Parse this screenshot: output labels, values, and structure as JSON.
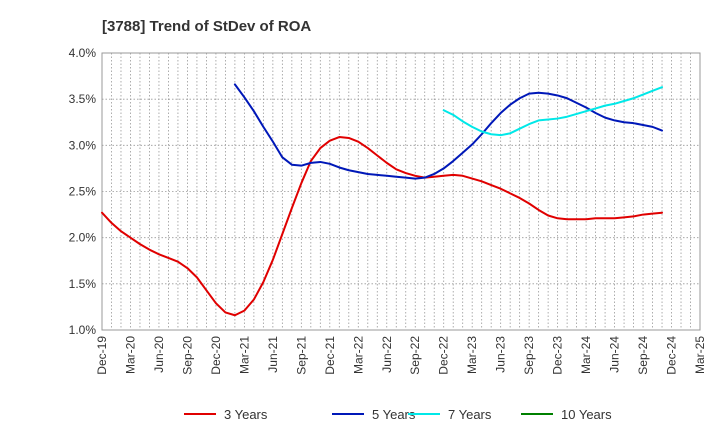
{
  "chart_data": {
    "type": "line",
    "title": "[3788]  Trend of StDev of ROA",
    "xlabel": "",
    "ylabel": "",
    "x_tick_labels": [
      "Dec-19",
      "Mar-20",
      "Jun-20",
      "Sep-20",
      "Dec-20",
      "Mar-21",
      "Jun-21",
      "Sep-21",
      "Dec-21",
      "Mar-22",
      "Jun-22",
      "Sep-22",
      "Dec-22",
      "Mar-23",
      "Jun-23",
      "Sep-23",
      "Dec-23",
      "Mar-24",
      "Jun-24",
      "Sep-24",
      "Dec-24",
      "Mar-25"
    ],
    "y_tick_labels": [
      "1.0%",
      "1.5%",
      "2.0%",
      "2.5%",
      "3.0%",
      "3.5%",
      "4.0%"
    ],
    "ylim": [
      1.0,
      4.0
    ],
    "grid": true,
    "legend_position": "bottom",
    "series": [
      {
        "name": "3 Years",
        "color": "#e00000",
        "points": [
          [
            "Dec-19",
            2.27
          ],
          [
            "Jan-20",
            2.16
          ],
          [
            "Feb-20",
            2.07
          ],
          [
            "Mar-20",
            2.0
          ],
          [
            "Apr-20",
            1.93
          ],
          [
            "May-20",
            1.87
          ],
          [
            "Jun-20",
            1.82
          ],
          [
            "Jul-20",
            1.78
          ],
          [
            "Aug-20",
            1.74
          ],
          [
            "Sep-20",
            1.67
          ],
          [
            "Oct-20",
            1.57
          ],
          [
            "Nov-20",
            1.43
          ],
          [
            "Dec-20",
            1.29
          ],
          [
            "Jan-21",
            1.19
          ],
          [
            "Feb-21",
            1.16
          ],
          [
            "Mar-21",
            1.21
          ],
          [
            "Apr-21",
            1.33
          ],
          [
            "May-21",
            1.52
          ],
          [
            "Jun-21",
            1.76
          ],
          [
            "Jul-21",
            2.04
          ],
          [
            "Aug-21",
            2.32
          ],
          [
            "Sep-21",
            2.59
          ],
          [
            "Oct-21",
            2.83
          ],
          [
            "Nov-21",
            2.97
          ],
          [
            "Dec-21",
            3.05
          ],
          [
            "Jan-22",
            3.09
          ],
          [
            "Feb-22",
            3.08
          ],
          [
            "Mar-22",
            3.04
          ],
          [
            "Apr-22",
            2.97
          ],
          [
            "May-22",
            2.89
          ],
          [
            "Jun-22",
            2.81
          ],
          [
            "Jul-22",
            2.74
          ],
          [
            "Aug-22",
            2.7
          ],
          [
            "Sep-22",
            2.67
          ],
          [
            "Oct-22",
            2.65
          ],
          [
            "Nov-22",
            2.66
          ],
          [
            "Dec-22",
            2.67
          ],
          [
            "Jan-23",
            2.68
          ],
          [
            "Feb-23",
            2.67
          ],
          [
            "Mar-23",
            2.64
          ],
          [
            "Apr-23",
            2.61
          ],
          [
            "May-23",
            2.57
          ],
          [
            "Jun-23",
            2.53
          ],
          [
            "Jul-23",
            2.48
          ],
          [
            "Aug-23",
            2.43
          ],
          [
            "Sep-23",
            2.37
          ],
          [
            "Oct-23",
            2.3
          ],
          [
            "Nov-23",
            2.24
          ],
          [
            "Dec-23",
            2.21
          ],
          [
            "Jan-24",
            2.2
          ],
          [
            "Feb-24",
            2.2
          ],
          [
            "Mar-24",
            2.2
          ],
          [
            "Apr-24",
            2.21
          ],
          [
            "May-24",
            2.21
          ],
          [
            "Jun-24",
            2.21
          ],
          [
            "Jul-24",
            2.22
          ],
          [
            "Aug-24",
            2.23
          ],
          [
            "Sep-24",
            2.25
          ],
          [
            "Oct-24",
            2.26
          ],
          [
            "Nov-24",
            2.27
          ]
        ]
      },
      {
        "name": "5 Years",
        "color": "#0018b8",
        "points": [
          [
            "Feb-21",
            3.66
          ],
          [
            "Mar-21",
            3.52
          ],
          [
            "Apr-21",
            3.37
          ],
          [
            "May-21",
            3.2
          ],
          [
            "Jun-21",
            3.04
          ],
          [
            "Jul-21",
            2.87
          ],
          [
            "Aug-21",
            2.79
          ],
          [
            "Sep-21",
            2.78
          ],
          [
            "Oct-21",
            2.81
          ],
          [
            "Nov-21",
            2.82
          ],
          [
            "Dec-21",
            2.8
          ],
          [
            "Jan-22",
            2.76
          ],
          [
            "Feb-22",
            2.73
          ],
          [
            "Mar-22",
            2.71
          ],
          [
            "Apr-22",
            2.69
          ],
          [
            "May-22",
            2.68
          ],
          [
            "Jun-22",
            2.67
          ],
          [
            "Jul-22",
            2.66
          ],
          [
            "Aug-22",
            2.65
          ],
          [
            "Sep-22",
            2.64
          ],
          [
            "Oct-22",
            2.65
          ],
          [
            "Nov-22",
            2.69
          ],
          [
            "Dec-22",
            2.75
          ],
          [
            "Jan-23",
            2.83
          ],
          [
            "Feb-23",
            2.92
          ],
          [
            "Mar-23",
            3.01
          ],
          [
            "Apr-23",
            3.12
          ],
          [
            "May-23",
            3.24
          ],
          [
            "Jun-23",
            3.35
          ],
          [
            "Jul-23",
            3.44
          ],
          [
            "Aug-23",
            3.51
          ],
          [
            "Sep-23",
            3.56
          ],
          [
            "Oct-23",
            3.57
          ],
          [
            "Nov-23",
            3.56
          ],
          [
            "Dec-23",
            3.54
          ],
          [
            "Jan-24",
            3.51
          ],
          [
            "Feb-24",
            3.46
          ],
          [
            "Mar-24",
            3.41
          ],
          [
            "Apr-24",
            3.35
          ],
          [
            "May-24",
            3.3
          ],
          [
            "Jun-24",
            3.27
          ],
          [
            "Jul-24",
            3.25
          ],
          [
            "Aug-24",
            3.24
          ],
          [
            "Sep-24",
            3.22
          ],
          [
            "Oct-24",
            3.2
          ],
          [
            "Nov-24",
            3.16
          ]
        ]
      },
      {
        "name": "7 Years",
        "color": "#00e8e8",
        "points": [
          [
            "Dec-22",
            3.38
          ],
          [
            "Jan-23",
            3.33
          ],
          [
            "Feb-23",
            3.26
          ],
          [
            "Mar-23",
            3.2
          ],
          [
            "Apr-23",
            3.15
          ],
          [
            "May-23",
            3.12
          ],
          [
            "Jun-23",
            3.11
          ],
          [
            "Jul-23",
            3.13
          ],
          [
            "Aug-23",
            3.18
          ],
          [
            "Sep-23",
            3.23
          ],
          [
            "Oct-23",
            3.27
          ],
          [
            "Nov-23",
            3.28
          ],
          [
            "Dec-23",
            3.29
          ],
          [
            "Jan-24",
            3.31
          ],
          [
            "Feb-24",
            3.34
          ],
          [
            "Mar-24",
            3.37
          ],
          [
            "Apr-24",
            3.4
          ],
          [
            "May-24",
            3.43
          ],
          [
            "Jun-24",
            3.45
          ],
          [
            "Jul-24",
            3.48
          ],
          [
            "Aug-24",
            3.51
          ],
          [
            "Sep-24",
            3.55
          ],
          [
            "Oct-24",
            3.59
          ],
          [
            "Nov-24",
            3.63
          ]
        ]
      },
      {
        "name": "10 Years",
        "color": "#008000",
        "points": []
      }
    ]
  }
}
